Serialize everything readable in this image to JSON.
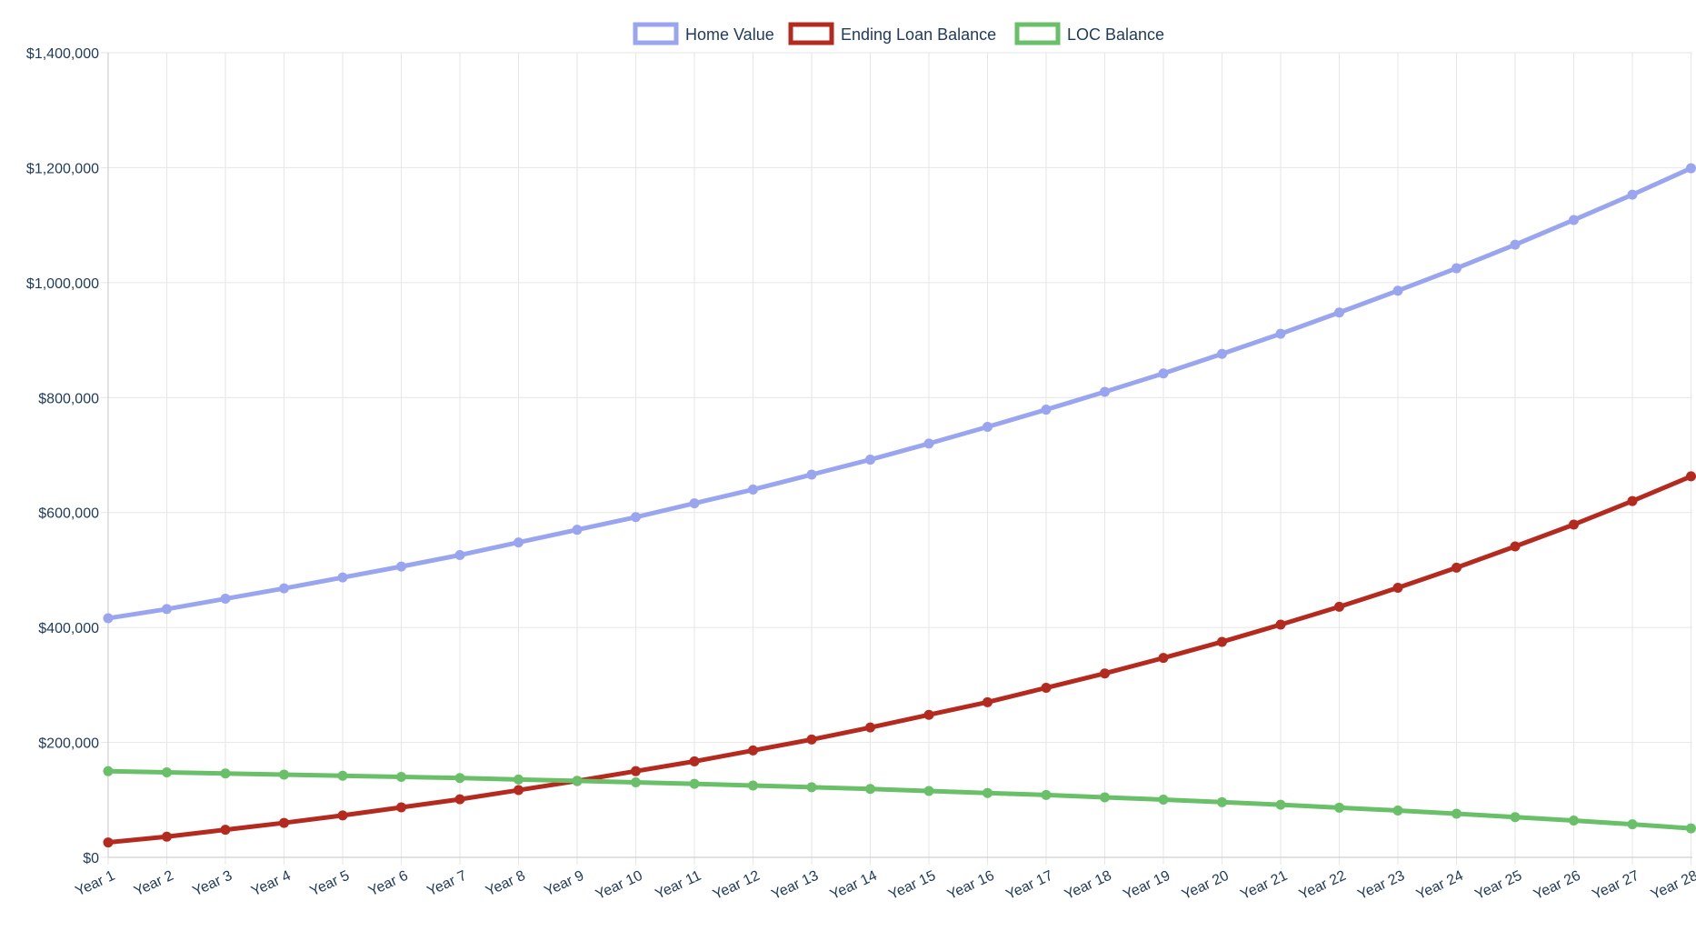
{
  "chart_data": {
    "type": "line",
    "title": "",
    "xlabel": "",
    "ylabel": "",
    "categories": [
      "Year 1",
      "Year 2",
      "Year 3",
      "Year 4",
      "Year 5",
      "Year 6",
      "Year 7",
      "Year 8",
      "Year 9",
      "Year 10",
      "Year 11",
      "Year 12",
      "Year 13",
      "Year 14",
      "Year 15",
      "Year 16",
      "Year 17",
      "Year 18",
      "Year 19",
      "Year 20",
      "Year 21",
      "Year 22",
      "Year 23",
      "Year 24",
      "Year 25",
      "Year 26",
      "Year 27",
      "Year 28"
    ],
    "ylim": [
      0,
      1400000
    ],
    "y_ticks": [
      0,
      200000,
      400000,
      600000,
      800000,
      1000000,
      1200000,
      1400000
    ],
    "y_tick_labels": [
      "$0",
      "$200,000",
      "$400,000",
      "$600,000",
      "$800,000",
      "$1,000,000",
      "$1,200,000",
      "$1,400,000"
    ],
    "grid": true,
    "legend_position": "top-center",
    "series": [
      {
        "name": "Home Value",
        "color": "#9aa5ef",
        "values": [
          416000,
          432000,
          450000,
          468000,
          487000,
          506000,
          526000,
          548000,
          570000,
          592000,
          616000,
          640000,
          666000,
          692000,
          720000,
          749000,
          779000,
          810000,
          842000,
          876000,
          911000,
          948000,
          986000,
          1025000,
          1066000,
          1109000,
          1153000,
          1199000
        ]
      },
      {
        "name": "Ending Loan Balance",
        "color": "#b52a1f",
        "values": [
          26000,
          36000,
          48000,
          60000,
          73000,
          87000,
          101000,
          117000,
          133000,
          150000,
          167000,
          186000,
          205000,
          226000,
          248000,
          270000,
          295000,
          320000,
          347000,
          375000,
          405000,
          436000,
          469000,
          504000,
          541000,
          579000,
          620000,
          663000
        ]
      },
      {
        "name": "LOC Balance",
        "color": "#6abf69",
        "values": [
          150000,
          148000,
          146000,
          144000,
          142000,
          140000,
          138000,
          135500,
          133000,
          130500,
          128000,
          125000,
          122000,
          119000,
          115500,
          112000,
          108500,
          104500,
          100500,
          96000,
          91500,
          86500,
          81500,
          76000,
          70000,
          64000,
          57500,
          50500
        ]
      }
    ]
  }
}
